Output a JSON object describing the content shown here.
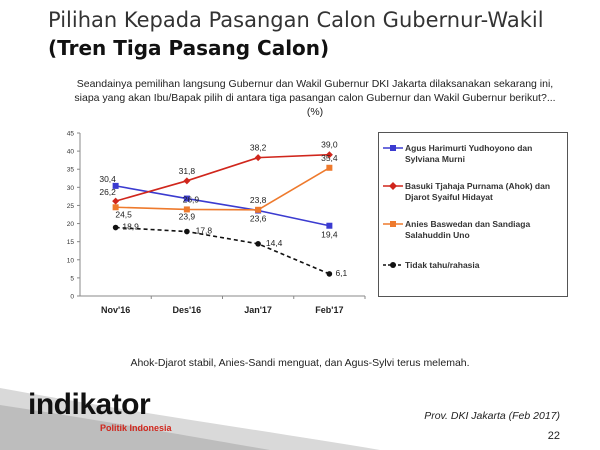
{
  "slide": {
    "title": "Pilihan Kepada Pasangan Calon Gubernur-Wakil",
    "subtitle": "(Tren Tiga Pasang Calon)",
    "question": "Seandainya pemilihan langsung Gubernur dan Wakil Gubernur DKI Jakarta dilaksanakan sekarang ini, siapa yang akan Ibu/Bapak pilih di antara tiga pasangan calon Gubernur dan Wakil Gubernur berikut?... (%)",
    "note": "Ahok-Djarot stabil, Anies-Sandi menguat, dan Agus-Sylvi terus melemah.",
    "logo_word": "indikator",
    "logo_sub": "Politik Indonesia",
    "source": "Prov. DKI Jakarta (Feb 2017)",
    "page": "22"
  },
  "colors": {
    "agus": "#3b3bd0",
    "ahok": "#d0261c",
    "anies": "#ee7a2d",
    "tidak": "#111111",
    "logo_accent": "#d0261c",
    "swoosh": "#c8c8c8"
  },
  "chart_data": {
    "type": "line",
    "categories": [
      "Nov'16",
      "Des'16",
      "Jan'17",
      "Feb'17"
    ],
    "ylim": [
      0,
      45
    ],
    "yticks": [
      0,
      5,
      10,
      15,
      20,
      25,
      30,
      35,
      40,
      45
    ],
    "grid": false,
    "legend_position": "right",
    "series": [
      {
        "key": "agus",
        "name": "Agus Harimurti Yudhoyono dan Sylviana Murni",
        "values": [
          30.4,
          26.9,
          23.6,
          19.4
        ],
        "labels": [
          "30,4",
          "26,9",
          "23,6",
          "19,4"
        ],
        "marker": "square",
        "dash": "solid"
      },
      {
        "key": "ahok",
        "name": "Basuki Tjahaja Purnama (Ahok) dan Djarot Syaiful Hidayat",
        "values": [
          26.2,
          31.8,
          38.2,
          39.0
        ],
        "labels": [
          "26,2",
          "31,8",
          "38,2",
          "39,0"
        ],
        "marker": "diamond",
        "dash": "solid"
      },
      {
        "key": "anies",
        "name": "Anies Baswedan dan Sandiaga Salahuddin Uno",
        "values": [
          24.5,
          23.9,
          23.8,
          35.4
        ],
        "labels": [
          "24,5",
          "23,9",
          "23,8",
          "35,4"
        ],
        "marker": "square",
        "dash": "solid"
      },
      {
        "key": "tidak",
        "name": "Tidak tahu/rahasia",
        "values": [
          18.9,
          17.8,
          14.4,
          6.1
        ],
        "labels": [
          "18,9",
          "17,8",
          "14,4",
          "6,1"
        ],
        "marker": "circle",
        "dash": "dashed"
      }
    ]
  }
}
